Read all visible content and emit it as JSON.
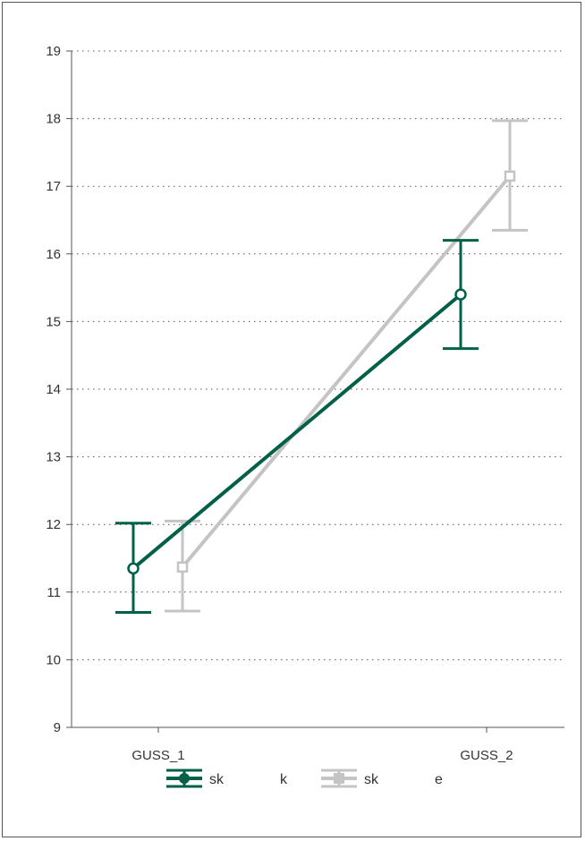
{
  "chart_data": {
    "type": "line",
    "categories": [
      "GUSS_1",
      "GUSS_2"
    ],
    "ylim": [
      9,
      19
    ],
    "yticks": [
      9,
      10,
      11,
      12,
      13,
      14,
      15,
      16,
      17,
      18,
      19
    ],
    "grid": true,
    "legend_position": "bottom",
    "series": [
      {
        "legend_parts": [
          "sk",
          "k"
        ],
        "color": "#006048",
        "marker": "circle",
        "values": [
          11.35,
          15.4
        ],
        "error_low": [
          10.7,
          14.6
        ],
        "error_high": [
          12.02,
          16.2
        ]
      },
      {
        "legend_parts": [
          "sk",
          "e"
        ],
        "color": "#c4c4c4",
        "marker": "square",
        "values": [
          11.37,
          17.15
        ],
        "error_low": [
          10.72,
          16.35
        ],
        "error_high": [
          12.05,
          17.97
        ]
      }
    ]
  }
}
